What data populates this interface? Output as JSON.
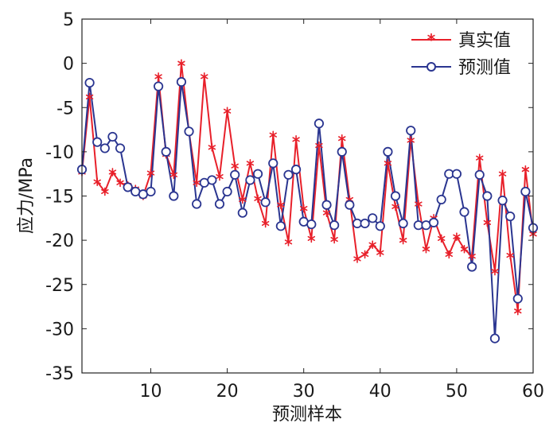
{
  "chart_data": {
    "type": "line",
    "xlabel": "预测样本",
    "ylabel": "应力/MPa",
    "xlim": [
      1,
      60
    ],
    "ylim": [
      -35,
      5
    ],
    "xticks": [
      10,
      20,
      30,
      40,
      50,
      60
    ],
    "yticks": [
      5,
      0,
      -5,
      -10,
      -15,
      -20,
      -25,
      -30,
      -35
    ],
    "grid": false,
    "legend_position": "top-right",
    "x": [
      1,
      2,
      3,
      4,
      5,
      6,
      7,
      8,
      9,
      10,
      11,
      12,
      13,
      14,
      15,
      16,
      17,
      18,
      19,
      20,
      21,
      22,
      23,
      24,
      25,
      26,
      27,
      28,
      29,
      30,
      31,
      32,
      33,
      34,
      35,
      36,
      37,
      38,
      39,
      40,
      41,
      42,
      43,
      44,
      45,
      46,
      47,
      48,
      49,
      50,
      51,
      52,
      53,
      54,
      55,
      56,
      57,
      58,
      59,
      60
    ],
    "series": [
      {
        "name": "真实值",
        "color": "#e8202a",
        "marker": "asterisk",
        "values": [
          -12.3,
          -3.8,
          -13.4,
          -14.5,
          -12.3,
          -13.5,
          -13.8,
          -14.2,
          -15.0,
          -12.4,
          -1.5,
          -10.3,
          -12.6,
          0.0,
          -7.8,
          -13.5,
          -1.5,
          -9.5,
          -12.8,
          -5.4,
          -11.6,
          -15.4,
          -11.3,
          -15.3,
          -18.1,
          -8.1,
          -16.0,
          -20.2,
          -8.6,
          -16.4,
          -19.8,
          -9.3,
          -16.9,
          -19.9,
          -8.5,
          -15.4,
          -22.1,
          -21.6,
          -20.5,
          -21.4,
          -11.3,
          -16.2,
          -20.0,
          -8.7,
          -15.9,
          -21.0,
          -17.5,
          -19.8,
          -21.6,
          -19.6,
          -21.0,
          -21.8,
          -10.7,
          -18.0,
          -23.5,
          -12.5,
          -21.7,
          -28.0,
          -12.0,
          -19.3
        ]
      },
      {
        "name": "预测值",
        "color": "#2a3590",
        "marker": "circle",
        "values": [
          -12.0,
          -2.2,
          -8.9,
          -9.6,
          -8.3,
          -9.6,
          -14.0,
          -14.5,
          -14.8,
          -14.5,
          -2.6,
          -10.0,
          -15.0,
          -2.1,
          -7.7,
          -15.9,
          -13.5,
          -13.2,
          -15.9,
          -14.5,
          -12.6,
          -16.9,
          -13.2,
          -12.5,
          -15.7,
          -11.3,
          -18.4,
          -12.6,
          -12.0,
          -17.9,
          -18.2,
          -6.8,
          -16.0,
          -18.3,
          -10.0,
          -16.0,
          -18.1,
          -18.1,
          -17.5,
          -18.4,
          -10.0,
          -15.0,
          -18.1,
          -7.6,
          -18.3,
          -18.3,
          -18.0,
          -15.4,
          -12.5,
          -12.5,
          -16.8,
          -23.0,
          -12.6,
          -15.0,
          -31.1,
          -15.5,
          -17.3,
          -26.6,
          -14.5,
          -18.6
        ]
      }
    ]
  }
}
